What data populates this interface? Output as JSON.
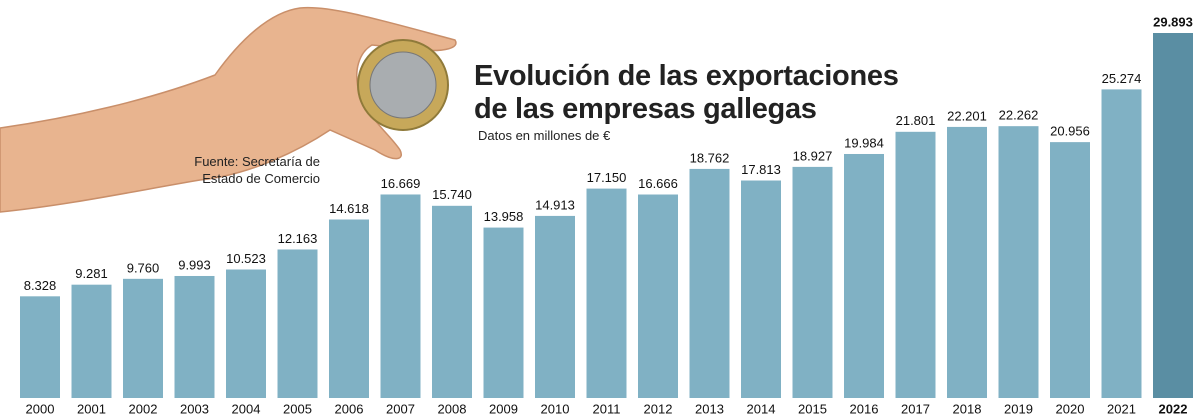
{
  "chart_data": {
    "type": "bar",
    "title": "Evolución de las exportaciones de las empresas gallegas",
    "subtitle": "Datos en millones de €",
    "source": "Fuente: Secretaría de Estado de Comercio",
    "categories": [
      "2000",
      "2001",
      "2002",
      "2003",
      "2004",
      "2005",
      "2006",
      "2007",
      "2008",
      "2009",
      "2010",
      "2011",
      "2012",
      "2013",
      "2014",
      "2015",
      "2016",
      "2017",
      "2018",
      "2019",
      "2020",
      "2021",
      "2022"
    ],
    "values": [
      8328,
      9281,
      9760,
      9993,
      10523,
      12163,
      14618,
      16669,
      15740,
      13958,
      14913,
      17150,
      16666,
      18762,
      17813,
      18927,
      19984,
      21801,
      22201,
      22262,
      20956,
      25274,
      29893
    ],
    "value_labels": [
      "8.328",
      "9.281",
      "9.760",
      "9.993",
      "10.523",
      "12.163",
      "14.618",
      "16.669",
      "15.740",
      "13.958",
      "14.913",
      "17.150",
      "16.666",
      "18.762",
      "17.813",
      "18.927",
      "19.984",
      "21.801",
      "22.201",
      "22.262",
      "20.956",
      "25.274",
      "29.893"
    ],
    "colors": [
      "#80b1c4",
      "#80b1c4",
      "#80b1c4",
      "#80b1c4",
      "#80b1c4",
      "#80b1c4",
      "#80b1c4",
      "#80b1c4",
      "#80b1c4",
      "#80b1c4",
      "#80b1c4",
      "#80b1c4",
      "#80b1c4",
      "#80b1c4",
      "#80b1c4",
      "#80b1c4",
      "#80b1c4",
      "#80b1c4",
      "#80b1c4",
      "#80b1c4",
      "#80b1c4",
      "#80b1c4",
      "#5a8ea3"
    ]
  }
}
